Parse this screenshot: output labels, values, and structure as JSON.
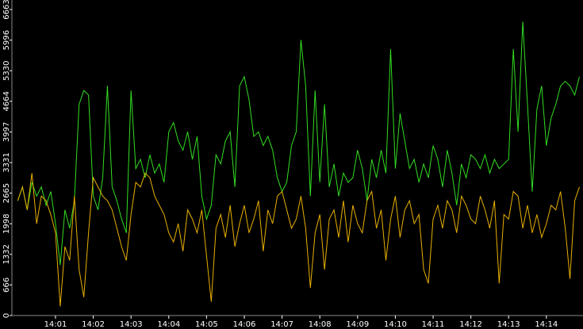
{
  "chart_data": {
    "type": "line",
    "x": [
      840,
      840.125,
      840.25,
      840.375,
      840.5,
      840.625,
      840.75,
      840.875,
      841,
      841.125,
      841.25,
      841.375,
      841.5,
      841.625,
      841.75,
      841.875,
      842,
      842.125,
      842.25,
      842.375,
      842.5,
      842.625,
      842.75,
      842.875,
      843,
      843.125,
      843.25,
      843.375,
      843.5,
      843.625,
      843.75,
      843.875,
      844,
      844.125,
      844.25,
      844.375,
      844.5,
      844.625,
      844.75,
      844.875,
      845,
      845.125,
      845.25,
      845.375,
      845.5,
      845.625,
      845.75,
      845.875,
      846,
      846.125,
      846.25,
      846.375,
      846.5,
      846.625,
      846.75,
      846.875,
      847,
      847.125,
      847.25,
      847.375,
      847.5,
      847.625,
      847.75,
      847.875,
      848,
      848.125,
      848.25,
      848.375,
      848.5,
      848.625,
      848.75,
      848.875,
      849,
      849.125,
      849.25,
      849.375,
      849.5,
      849.625,
      849.75,
      849.875,
      850,
      850.125,
      850.25,
      850.375,
      850.5,
      850.625,
      850.75,
      850.875,
      851,
      851.125,
      851.25,
      851.375,
      851.5,
      851.625,
      851.75,
      851.875,
      852,
      852.125,
      852.25,
      852.375,
      852.5,
      852.625,
      852.75,
      852.875,
      853,
      853.125,
      853.25,
      853.375,
      853.5,
      853.625,
      853.75,
      853.875,
      854,
      854.125,
      854.25,
      854.375,
      854.5,
      854.625,
      854.75,
      854.875
    ],
    "series": [
      {
        "color": "#33dd22",
        "values": [
          2500,
          2800,
          2300,
          2900,
          2600,
          2800,
          2400,
          2700,
          2000,
          1100,
          2300,
          1900,
          2500,
          4600,
          4900,
          4800,
          2600,
          2300,
          3000,
          5000,
          2800,
          2500,
          2100,
          1800,
          4900,
          3200,
          3400,
          3000,
          3500,
          3100,
          3300,
          2900,
          4000,
          4200,
          3800,
          3600,
          4000,
          3400,
          3900,
          2600,
          2100,
          2400,
          3500,
          3300,
          3800,
          4000,
          2800,
          5000,
          5200,
          4700,
          3900,
          4000,
          3700,
          3900,
          3600,
          3000,
          2700,
          2900,
          3700,
          4000,
          6000,
          5000,
          2600,
          4900,
          2900,
          4600,
          2800,
          3300,
          2600,
          3100,
          2900,
          3000,
          3600,
          3200,
          2500,
          3400,
          3000,
          3600,
          3100,
          5800,
          3200,
          4400,
          3800,
          3200,
          3400,
          2900,
          3300,
          3000,
          3700,
          3400,
          2800,
          3600,
          3100,
          2400,
          3300,
          3000,
          3500,
          3400,
          3200,
          3500,
          3100,
          3400,
          3200,
          3300,
          3400,
          5800,
          4000,
          6400,
          4600,
          2700,
          4500,
          5000,
          3700,
          4300,
          4600,
          5000,
          5100,
          5000,
          4800,
          5200
        ]
      },
      {
        "color": "#e8b000",
        "values": [
          2500,
          2800,
          2300,
          3100,
          2000,
          2600,
          2500,
          2200,
          1800,
          200,
          1500,
          1200,
          2600,
          1000,
          400,
          1800,
          3000,
          2800,
          2600,
          2500,
          2300,
          1900,
          1500,
          1200,
          2200,
          2900,
          2800,
          3100,
          3000,
          2600,
          2400,
          2200,
          1800,
          1600,
          2000,
          1400,
          2300,
          2100,
          1800,
          2300,
          1300,
          300,
          1900,
          2200,
          1700,
          2400,
          1500,
          2000,
          2400,
          1800,
          2100,
          2500,
          1400,
          2300,
          2000,
          2600,
          2700,
          2300,
          1900,
          2100,
          2600,
          1900,
          600,
          1800,
          2200,
          1000,
          2100,
          2300,
          1700,
          2500,
          1600,
          2400,
          2000,
          1800,
          2500,
          2700,
          1900,
          2300,
          1200,
          2100,
          2600,
          1700,
          2300,
          2500,
          2000,
          2200,
          1000,
          700,
          2100,
          2400,
          1900,
          2500,
          2300,
          1800,
          2600,
          2400,
          2100,
          2000,
          2600,
          2300,
          1900,
          2500,
          700,
          2200,
          2100,
          2700,
          2600,
          1900,
          2400,
          1800,
          2200,
          1700,
          2000,
          2400,
          2300,
          2700,
          1900,
          800,
          2500,
          2800
        ]
      }
    ],
    "xlim": [
      839.845,
      854.97
    ],
    "xticks": [
      {
        "value": 841,
        "label": "14:01"
      },
      {
        "value": 842,
        "label": "14:02"
      },
      {
        "value": 843,
        "label": "14:03"
      },
      {
        "value": 844,
        "label": "14:04"
      },
      {
        "value": 845,
        "label": "14:05"
      },
      {
        "value": 846,
        "label": "14:06"
      },
      {
        "value": 847,
        "label": "14:07"
      },
      {
        "value": 848,
        "label": "14:08"
      },
      {
        "value": 849,
        "label": "14:09"
      },
      {
        "value": 850,
        "label": "14:10"
      },
      {
        "value": 851,
        "label": "14:11"
      },
      {
        "value": 852,
        "label": "14:12"
      },
      {
        "value": 853,
        "label": "14:13"
      },
      {
        "value": 854,
        "label": "14:14"
      }
    ],
    "ylim": [
      0,
      6870
    ],
    "yticks": [
      0,
      666,
      1332,
      1998,
      2665,
      3331,
      3997,
      4664,
      5330,
      5996,
      6663
    ]
  }
}
